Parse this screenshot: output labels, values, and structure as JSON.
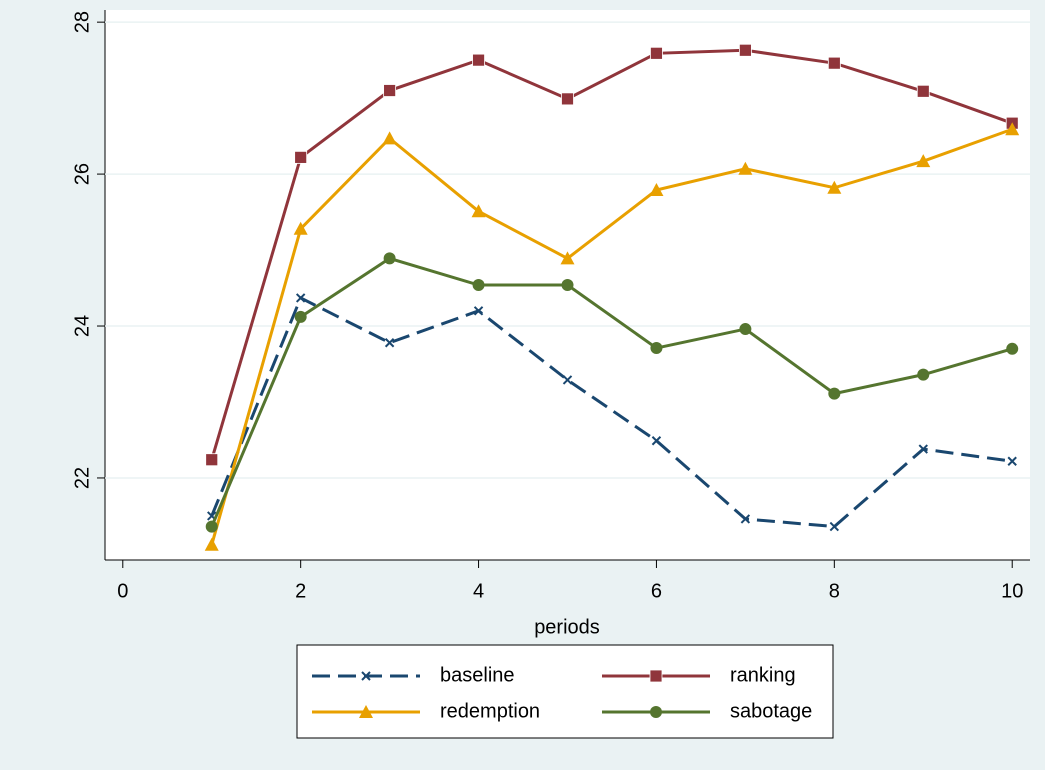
{
  "chart_data": {
    "type": "line",
    "x": [
      1,
      2,
      3,
      4,
      5,
      6,
      7,
      8,
      9,
      10
    ],
    "x_label": "periods",
    "xlim": [
      -0.2,
      10.2
    ],
    "xticks": [
      0,
      2,
      4,
      6,
      8,
      10
    ],
    "ylim": [
      20.92,
      28.16
    ],
    "yticks": [
      22,
      24,
      26,
      28
    ],
    "grid": true,
    "legend": "bottom",
    "series": [
      {
        "name": "baseline",
        "color": "#1a476f",
        "marker": "x",
        "dash": true,
        "values": [
          21.5,
          24.37,
          23.78,
          24.2,
          23.29,
          22.49,
          21.46,
          21.36,
          22.38,
          22.22
        ]
      },
      {
        "name": "ranking",
        "color": "#90353b",
        "marker": "square",
        "dash": false,
        "values": [
          22.24,
          26.22,
          27.1,
          27.5,
          26.99,
          27.59,
          27.63,
          27.46,
          27.09,
          26.67
        ]
      },
      {
        "name": "redemption",
        "color": "#e8a000",
        "marker": "triangle",
        "dash": false,
        "values": [
          21.12,
          25.28,
          26.47,
          25.51,
          24.89,
          25.79,
          26.07,
          25.82,
          26.17,
          26.59
        ]
      },
      {
        "name": "sabotage",
        "color": "#55752f",
        "marker": "circle",
        "dash": false,
        "values": [
          21.36,
          24.12,
          24.89,
          24.54,
          24.54,
          23.71,
          23.96,
          23.11,
          23.36,
          23.7
        ]
      }
    ]
  }
}
